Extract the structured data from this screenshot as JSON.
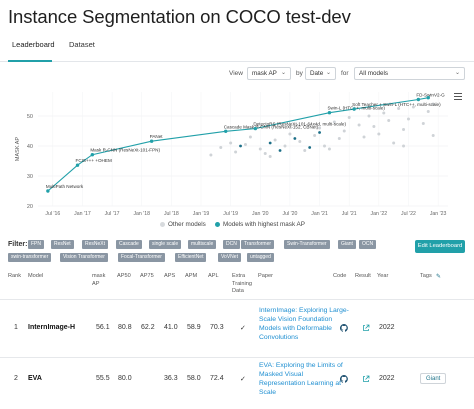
{
  "page_title": "Instance Segmentation on COCO test-dev",
  "tabs": [
    {
      "label": "Leaderboard",
      "active": true
    },
    {
      "label": "Dataset",
      "active": false
    }
  ],
  "controls": {
    "view_label": "View",
    "view_value": "mask AP",
    "by_label": "by",
    "by_value": "Date",
    "for_label": "for",
    "for_value": "All models"
  },
  "chart_data": {
    "type": "scatter",
    "ylabel": "MASK AP",
    "ylim": [
      20,
      58
    ],
    "yticks": [
      "20",
      "30",
      "40",
      "50"
    ],
    "xticks": [
      "Jul '16",
      "Jan '17",
      "Jul '17",
      "Jan '18",
      "Jul '18",
      "Jan '19",
      "Jul '19",
      "Jan '20",
      "Jul '20",
      "Jan '21",
      "Jul '21",
      "Jan '22",
      "Jul '22",
      "Jan '23"
    ],
    "series": [
      {
        "name": "Models with highest mask AP",
        "color": "#21a0a9",
        "points": [
          {
            "x": "2016-06",
            "y": 25.0,
            "label": "MultiPath Network"
          },
          {
            "x": "2016-12",
            "y": 33.6,
            "label": "FCIS+++ +OHEM"
          },
          {
            "x": "2017-03",
            "y": 37.1,
            "label": "Mask R-CNN (ResNeXt-101-FPN)"
          },
          {
            "x": "2018-03",
            "y": 41.6,
            "label": "PANet"
          },
          {
            "x": "2019-06",
            "y": 44.9,
            "label": "Cascade Mask R-CNN (ResNeXt-152, CBNet)"
          },
          {
            "x": "2019-12",
            "y": 45.8,
            "label": "DetectoRS (ResNeXt-101-64x4d, multi-scale)"
          },
          {
            "x": "2021-03",
            "y": 51.1,
            "label": "Swin-L (HTC++, multi-scale)"
          },
          {
            "x": "2021-08",
            "y": 52.3,
            "label": "Soft Teacher + Swin-L (HTC++, multi-scale)"
          },
          {
            "x": "2022-09",
            "y": 55.5,
            "label": "FD-SwinV2-G"
          },
          {
            "x": "2022-11",
            "y": 56.1,
            "label": ""
          }
        ]
      },
      {
        "name": "Other models",
        "color": "#cfd3d7",
        "points": [
          {
            "x": "2019-03",
            "y": 37.0
          },
          {
            "x": "2019-05",
            "y": 39.5
          },
          {
            "x": "2019-07",
            "y": 41.0
          },
          {
            "x": "2019-08",
            "y": 38.0
          },
          {
            "x": "2019-10",
            "y": 40.5
          },
          {
            "x": "2019-11",
            "y": 43.0
          },
          {
            "x": "2020-01",
            "y": 39.0
          },
          {
            "x": "2020-02",
            "y": 37.5
          },
          {
            "x": "2020-04",
            "y": 42.0
          },
          {
            "x": "2020-06",
            "y": 40.0
          },
          {
            "x": "2020-07",
            "y": 44.0
          },
          {
            "x": "2020-09",
            "y": 41.5
          },
          {
            "x": "2020-10",
            "y": 38.5
          },
          {
            "x": "2020-12",
            "y": 43.5
          },
          {
            "x": "2021-01",
            "y": 46.0
          },
          {
            "x": "2021-02",
            "y": 40.0
          },
          {
            "x": "2021-04",
            "y": 48.0
          },
          {
            "x": "2021-05",
            "y": 42.5
          },
          {
            "x": "2021-06",
            "y": 45.0
          },
          {
            "x": "2021-07",
            "y": 49.5
          },
          {
            "x": "2021-09",
            "y": 47.0
          },
          {
            "x": "2021-10",
            "y": 43.0
          },
          {
            "x": "2021-11",
            "y": 50.0
          },
          {
            "x": "2021-12",
            "y": 46.5
          },
          {
            "x": "2022-01",
            "y": 44.0
          },
          {
            "x": "2022-02",
            "y": 51.0
          },
          {
            "x": "2022-03",
            "y": 48.5
          },
          {
            "x": "2022-04",
            "y": 41.0
          },
          {
            "x": "2022-05",
            "y": 52.5
          },
          {
            "x": "2022-06",
            "y": 45.5
          },
          {
            "x": "2022-07",
            "y": 49.0
          },
          {
            "x": "2022-08",
            "y": 53.0
          },
          {
            "x": "2022-10",
            "y": 47.5
          },
          {
            "x": "2022-11",
            "y": 51.5
          },
          {
            "x": "2022-12",
            "y": 43.5
          },
          {
            "x": "2022-12",
            "y": 54.0
          },
          {
            "x": "2020-03",
            "y": 36.5
          },
          {
            "x": "2021-03",
            "y": 39.0
          },
          {
            "x": "2022-06",
            "y": 40.0
          }
        ]
      },
      {
        "name": "",
        "color": "#1b6e87",
        "points": [
          {
            "x": "2019-09",
            "y": 40.0
          },
          {
            "x": "2020-03",
            "y": 41.0
          },
          {
            "x": "2020-05",
            "y": 38.5
          },
          {
            "x": "2020-08",
            "y": 42.5
          },
          {
            "x": "2021-01",
            "y": 44.5
          },
          {
            "x": "2020-11",
            "y": 39.5
          }
        ]
      }
    ],
    "legend": "bottom-center",
    "grid": true
  },
  "chart_menu_icon": "hamburger-icon",
  "legend": {
    "other": "Other models",
    "highest": "Models with highest mask AP"
  },
  "filters": {
    "label": "Filter:",
    "chips": [
      "FPN",
      "ResNet",
      "ResNeXt",
      "Cascade",
      "single scale",
      "multiscale",
      "DCN",
      "Transformer",
      "Swin-Transformer",
      "Giant",
      "OCN",
      "swin-transformer",
      "Vision Transformer",
      "Focal-Transformer",
      "EfficientNet",
      "VoVNet",
      "untagged"
    ],
    "edit_button": "Edit Leaderboard"
  },
  "table": {
    "headers": {
      "rank": "Rank",
      "model": "Model",
      "mask_ap": "mask AP",
      "ap50": "AP50",
      "ap75": "AP75",
      "aps": "APS",
      "apm": "APM",
      "apl": "APL",
      "extra": "Extra Training Data",
      "paper": "Paper",
      "code": "Code",
      "result": "Result",
      "year": "Year",
      "tags": "Tags"
    },
    "rows": [
      {
        "rank": "1",
        "model": "InternImage-H",
        "mask_ap": "56.1",
        "ap50": "80.8",
        "ap75": "62.2",
        "aps": "41.0",
        "apm": "58.9",
        "apl": "70.3",
        "extra": "✓",
        "paper": "InternImage: Exploring Large-Scale Vision Foundation Models with Deformable Convolutions",
        "year": "2022",
        "tag": ""
      },
      {
        "rank": "2",
        "model": "EVA",
        "mask_ap": "55.5",
        "ap50": "80.0",
        "ap75": "",
        "aps": "36.3",
        "apm": "58.0",
        "apl": "72.4",
        "extra": "✓",
        "paper": "EVA: Exploring the Limits of Masked Visual Representation Learning at Scale",
        "year": "2022",
        "tag": "Giant"
      }
    ]
  },
  "icons": {
    "code": "github-icon",
    "result": "result-link-icon",
    "tags_edit": "edit-icon"
  }
}
